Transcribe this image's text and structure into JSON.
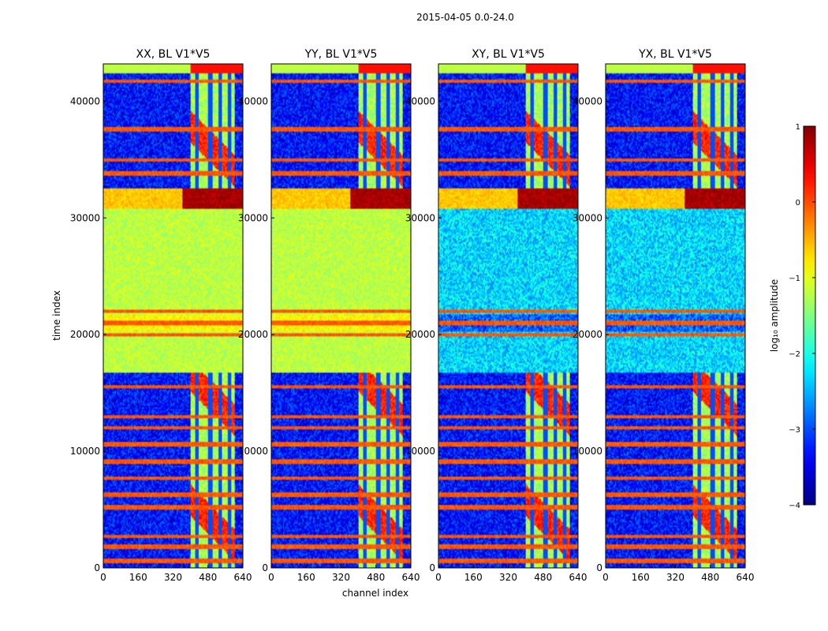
{
  "suptitle": "2015-04-05 0.0-24.0",
  "chart_data": {
    "type": "heatmap",
    "xlabel": "channel index",
    "ylabel": "time index",
    "xlim": [
      0,
      640
    ],
    "ylim": [
      0,
      43200
    ],
    "xticks": [
      0,
      160,
      320,
      480,
      640
    ],
    "yticks": [
      0,
      10000,
      20000,
      30000,
      40000
    ],
    "panels": [
      {
        "title": "XX, BL V1*V5",
        "pol": "XX"
      },
      {
        "title": "YY, BL V1*V5",
        "pol": "YY"
      },
      {
        "title": "XY, BL V1*V5",
        "pol": "XY"
      },
      {
        "title": "YX, BL V1*V5",
        "pol": "YX"
      }
    ],
    "colorbar": {
      "label": "log₁₀ amplitude",
      "min": -4,
      "max": 1,
      "ticks": [
        1,
        0,
        -1,
        -2,
        -3,
        -4
      ],
      "tick_labels": [
        "1",
        "0",
        "−1",
        "−2",
        "−3",
        "−4"
      ],
      "colormap": "jet"
    },
    "features": {
      "bright_channel_range": [
        400,
        600
      ],
      "bright_channel_strips": [
        430,
        490,
        535,
        580
      ],
      "strong_rfi_band_time": [
        30800,
        32500
      ],
      "daytime_band_time": [
        16800,
        30800
      ],
      "flag_line_times": [
        600,
        1800,
        2700,
        5200,
        6300,
        7700,
        9100,
        10600,
        12000,
        13000,
        15500,
        20000,
        21000,
        22000,
        33800,
        35000,
        37600,
        41700,
        42900
      ]
    }
  }
}
